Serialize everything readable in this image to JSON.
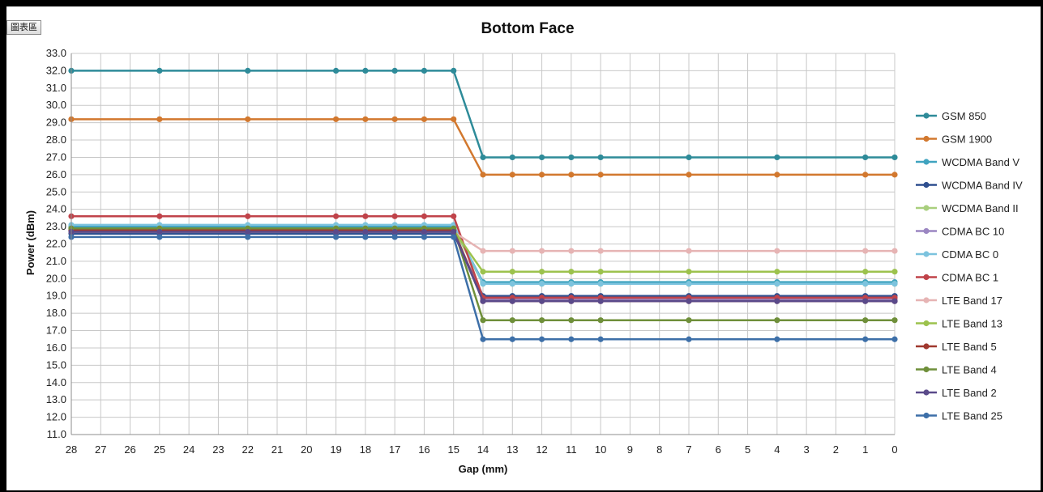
{
  "chart_area_label": "圖表區",
  "chart_data": {
    "type": "line",
    "title": "Bottom Face",
    "xlabel": "Gap (mm)",
    "ylabel": "Power (dBm)",
    "ylim": [
      11.0,
      33.0
    ],
    "ytick_step": 1.0,
    "x_categories": [
      "28",
      "27",
      "26",
      "25",
      "24",
      "23",
      "22",
      "21",
      "20",
      "19",
      "18",
      "17",
      "16",
      "15",
      "14",
      "13",
      "12",
      "11",
      "10",
      "9",
      "8",
      "7",
      "6",
      "5",
      "4",
      "3",
      "2",
      "1",
      "0"
    ],
    "marker_x": [
      "28",
      "25",
      "22",
      "19",
      "18",
      "17",
      "16",
      "15",
      "14",
      "13",
      "12",
      "11",
      "10",
      "7",
      "4",
      "1",
      "0"
    ],
    "grid": true,
    "legend_position": "right",
    "series": [
      {
        "name": "GSM 850",
        "color": "#2e8b99",
        "values": [
          32.0,
          32.0,
          32.0,
          32.0,
          32.0,
          32.0,
          32.0,
          32.0,
          27.0,
          27.0,
          27.0,
          27.0,
          27.0,
          27.0,
          27.0,
          27.0,
          27.0
        ]
      },
      {
        "name": "GSM 1900",
        "color": "#d2782e",
        "values": [
          29.2,
          29.2,
          29.2,
          29.2,
          29.2,
          29.2,
          29.2,
          29.2,
          26.0,
          26.0,
          26.0,
          26.0,
          26.0,
          26.0,
          26.0,
          26.0,
          26.0
        ]
      },
      {
        "name": "WCDMA Band V",
        "color": "#3fa3bf",
        "values": [
          23.0,
          23.0,
          23.0,
          23.0,
          23.0,
          23.0,
          23.0,
          23.0,
          19.8,
          19.8,
          19.8,
          19.8,
          19.8,
          19.8,
          19.8,
          19.8,
          19.8
        ]
      },
      {
        "name": "WCDMA Band IV",
        "color": "#2f4f8f",
        "values": [
          22.6,
          22.6,
          22.6,
          22.6,
          22.6,
          22.6,
          22.6,
          22.6,
          19.0,
          19.0,
          19.0,
          19.0,
          19.0,
          19.0,
          19.0,
          19.0,
          19.0
        ]
      },
      {
        "name": "WCDMA Band II",
        "color": "#a9cf7e",
        "values": [
          22.9,
          22.9,
          22.9,
          22.9,
          22.9,
          22.9,
          22.9,
          22.9,
          19.7,
          19.7,
          19.7,
          19.7,
          19.7,
          19.7,
          19.7,
          19.7,
          19.7
        ]
      },
      {
        "name": "CDMA BC 10",
        "color": "#9b86c2",
        "values": [
          22.8,
          22.8,
          22.8,
          22.8,
          22.8,
          22.8,
          22.8,
          22.8,
          18.8,
          18.8,
          18.8,
          18.8,
          18.8,
          18.8,
          18.8,
          18.8,
          18.8
        ]
      },
      {
        "name": "CDMA BC 0",
        "color": "#7cc3de",
        "values": [
          23.1,
          23.1,
          23.1,
          23.1,
          23.1,
          23.1,
          23.1,
          23.1,
          19.7,
          19.7,
          19.7,
          19.7,
          19.7,
          19.7,
          19.7,
          19.7,
          19.7
        ]
      },
      {
        "name": "CDMA BC 1",
        "color": "#c0434a",
        "values": [
          23.6,
          23.6,
          23.6,
          23.6,
          23.6,
          23.6,
          23.6,
          23.6,
          18.9,
          18.9,
          18.9,
          18.9,
          18.9,
          18.9,
          18.9,
          18.9,
          18.9
        ]
      },
      {
        "name": "LTE Band 17",
        "color": "#e6b4b4",
        "values": [
          22.7,
          22.7,
          22.7,
          22.7,
          22.7,
          22.7,
          22.7,
          22.7,
          21.6,
          21.6,
          21.6,
          21.6,
          21.6,
          21.6,
          21.6,
          21.6,
          21.6
        ]
      },
      {
        "name": "LTE Band 13",
        "color": "#9cc24d",
        "values": [
          22.8,
          22.8,
          22.8,
          22.8,
          22.8,
          22.8,
          22.8,
          22.8,
          20.4,
          20.4,
          20.4,
          20.4,
          20.4,
          20.4,
          20.4,
          20.4,
          20.4
        ]
      },
      {
        "name": "LTE Band 5",
        "color": "#a0382e",
        "values": [
          22.8,
          22.8,
          22.8,
          22.8,
          22.8,
          22.8,
          22.8,
          22.8,
          18.7,
          18.7,
          18.7,
          18.7,
          18.7,
          18.7,
          18.7,
          18.7,
          18.7
        ]
      },
      {
        "name": "LTE Band 4",
        "color": "#6f8f3a",
        "values": [
          22.9,
          22.9,
          22.9,
          22.9,
          22.9,
          22.9,
          22.9,
          22.9,
          17.6,
          17.6,
          17.6,
          17.6,
          17.6,
          17.6,
          17.6,
          17.6,
          17.6
        ]
      },
      {
        "name": "LTE Band 2",
        "color": "#5a4a8a",
        "values": [
          22.7,
          22.7,
          22.7,
          22.7,
          22.7,
          22.7,
          22.7,
          22.7,
          18.7,
          18.7,
          18.7,
          18.7,
          18.7,
          18.7,
          18.7,
          18.7,
          18.7
        ]
      },
      {
        "name": "LTE Band 25",
        "color": "#3d6fa8",
        "values": [
          22.4,
          22.4,
          22.4,
          22.4,
          22.4,
          22.4,
          22.4,
          22.4,
          16.5,
          16.5,
          16.5,
          16.5,
          16.5,
          16.5,
          16.5,
          16.5,
          16.5
        ]
      }
    ]
  }
}
